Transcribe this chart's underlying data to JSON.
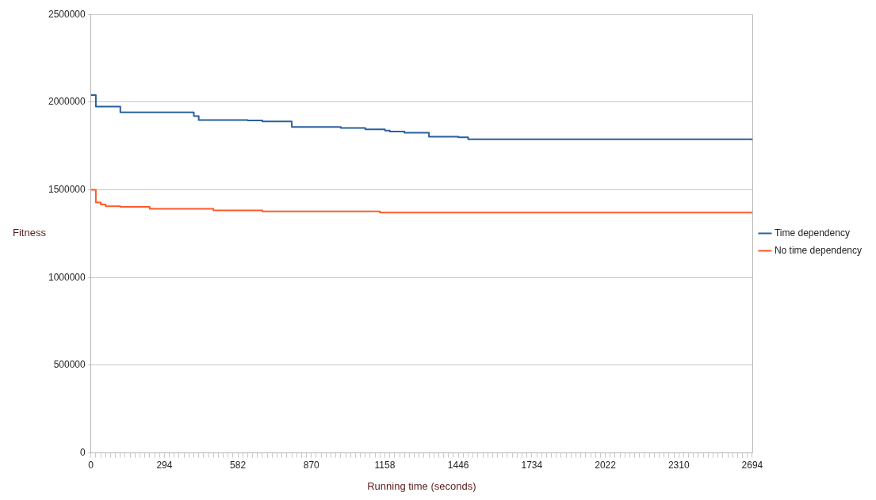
{
  "chart_data": {
    "type": "step",
    "xlabel": "Running time (seconds)",
    "ylabel": "Fitness",
    "categories": [
      "0",
      null,
      null,
      null,
      null,
      null,
      null,
      null,
      null,
      null,
      null,
      null,
      null,
      null,
      null,
      "294",
      null,
      null,
      null,
      null,
      null,
      null,
      null,
      null,
      null,
      null,
      null,
      null,
      null,
      null,
      "582",
      null,
      null,
      null,
      null,
      null,
      null,
      null,
      null,
      null,
      null,
      null,
      null,
      null,
      null,
      "870",
      null,
      null,
      null,
      null,
      null,
      null,
      null,
      null,
      null,
      null,
      null,
      null,
      null,
      null,
      "1158",
      null,
      null,
      null,
      null,
      null,
      null,
      null,
      null,
      null,
      null,
      null,
      null,
      null,
      null,
      "1446",
      null,
      null,
      null,
      null,
      null,
      null,
      null,
      null,
      null,
      null,
      null,
      null,
      null,
      null,
      "1734",
      null,
      null,
      null,
      null,
      null,
      null,
      null,
      null,
      null,
      null,
      null,
      null,
      null,
      null,
      "2022",
      null,
      null,
      null,
      null,
      null,
      null,
      null,
      null,
      null,
      null,
      null,
      null,
      null,
      null,
      "2310",
      null,
      null,
      null,
      null,
      null,
      null,
      null,
      null,
      null,
      null,
      null,
      null,
      null,
      null,
      "2694"
    ],
    "series": [
      {
        "name": "Time dependency",
        "color": "#2a5f9e",
        "values": [
          2040000,
          1975000,
          1975000,
          1975000,
          1975000,
          1975000,
          1942000,
          1942000,
          1942000,
          1942000,
          1942000,
          1942000,
          1942000,
          1942000,
          1942000,
          1942000,
          1942000,
          1942000,
          1942000,
          1942000,
          1942000,
          1920000,
          1898000,
          1898000,
          1898000,
          1898000,
          1898000,
          1898000,
          1898000,
          1898000,
          1898000,
          1898000,
          1895000,
          1895000,
          1895000,
          1890000,
          1890000,
          1890000,
          1890000,
          1890000,
          1890000,
          1858000,
          1858000,
          1858000,
          1858000,
          1858000,
          1858000,
          1858000,
          1858000,
          1858000,
          1858000,
          1853000,
          1853000,
          1853000,
          1853000,
          1853000,
          1845000,
          1845000,
          1845000,
          1845000,
          1838000,
          1832000,
          1832000,
          1832000,
          1825000,
          1825000,
          1825000,
          1825000,
          1825000,
          1803000,
          1803000,
          1803000,
          1803000,
          1803000,
          1803000,
          1799000,
          1799000,
          1788000,
          1788000,
          1788000,
          1788000,
          1788000,
          1788000,
          1788000,
          1788000,
          1788000,
          1788000,
          1788000,
          1788000,
          1788000,
          1788000,
          1788000,
          1788000,
          1788000,
          1788000,
          1788000,
          1788000,
          1788000,
          1788000,
          1788000,
          1788000,
          1788000,
          1788000,
          1788000,
          1788000,
          1788000,
          1788000,
          1788000,
          1788000,
          1788000,
          1788000,
          1788000,
          1788000,
          1788000,
          1788000,
          1788000,
          1788000,
          1788000,
          1788000,
          1788000,
          1788000,
          1788000,
          1788000,
          1788000,
          1788000,
          1788000,
          1788000,
          1788000,
          1788000,
          1788000,
          1788000,
          1788000,
          1788000,
          1788000,
          1788000,
          1783000
        ]
      },
      {
        "name": "No time dependency",
        "color": "#ff5a2a",
        "values": [
          1500000,
          1428000,
          1417000,
          1407000,
          1407000,
          1407000,
          1403000,
          1403000,
          1403000,
          1403000,
          1403000,
          1403000,
          1392000,
          1392000,
          1392000,
          1392000,
          1392000,
          1392000,
          1392000,
          1392000,
          1392000,
          1392000,
          1392000,
          1392000,
          1392000,
          1383000,
          1383000,
          1383000,
          1383000,
          1383000,
          1383000,
          1383000,
          1383000,
          1383000,
          1383000,
          1377000,
          1377000,
          1377000,
          1377000,
          1377000,
          1377000,
          1377000,
          1377000,
          1377000,
          1377000,
          1377000,
          1377000,
          1377000,
          1377000,
          1377000,
          1377000,
          1377000,
          1377000,
          1377000,
          1377000,
          1377000,
          1377000,
          1377000,
          1377000,
          1370000,
          1370000,
          1370000,
          1370000,
          1370000,
          1370000,
          1370000,
          1370000,
          1370000,
          1370000,
          1370000,
          1370000,
          1370000,
          1370000,
          1370000,
          1370000,
          1370000,
          1370000,
          1370000,
          1370000,
          1370000,
          1370000,
          1370000,
          1370000,
          1370000,
          1370000,
          1370000,
          1370000,
          1370000,
          1370000,
          1370000,
          1370000,
          1370000,
          1370000,
          1370000,
          1370000,
          1370000,
          1370000,
          1370000,
          1370000,
          1370000,
          1370000,
          1370000,
          1370000,
          1370000,
          1370000,
          1370000,
          1370000,
          1370000,
          1370000,
          1370000,
          1370000,
          1370000,
          1370000,
          1370000,
          1370000,
          1370000,
          1370000,
          1370000,
          1370000,
          1370000,
          1370000,
          1370000,
          1370000,
          1370000,
          1370000,
          1370000,
          1370000,
          1370000,
          1370000,
          1370000,
          1370000,
          1370000,
          1370000,
          1370000,
          1370000,
          1370000
        ]
      }
    ],
    "ylim": [
      0,
      2500000
    ],
    "yticks": [
      0,
      500000,
      1000000,
      1500000,
      2000000,
      2500000
    ],
    "grid": "y",
    "legend": "right",
    "marker": "none",
    "line_style": "solid"
  }
}
